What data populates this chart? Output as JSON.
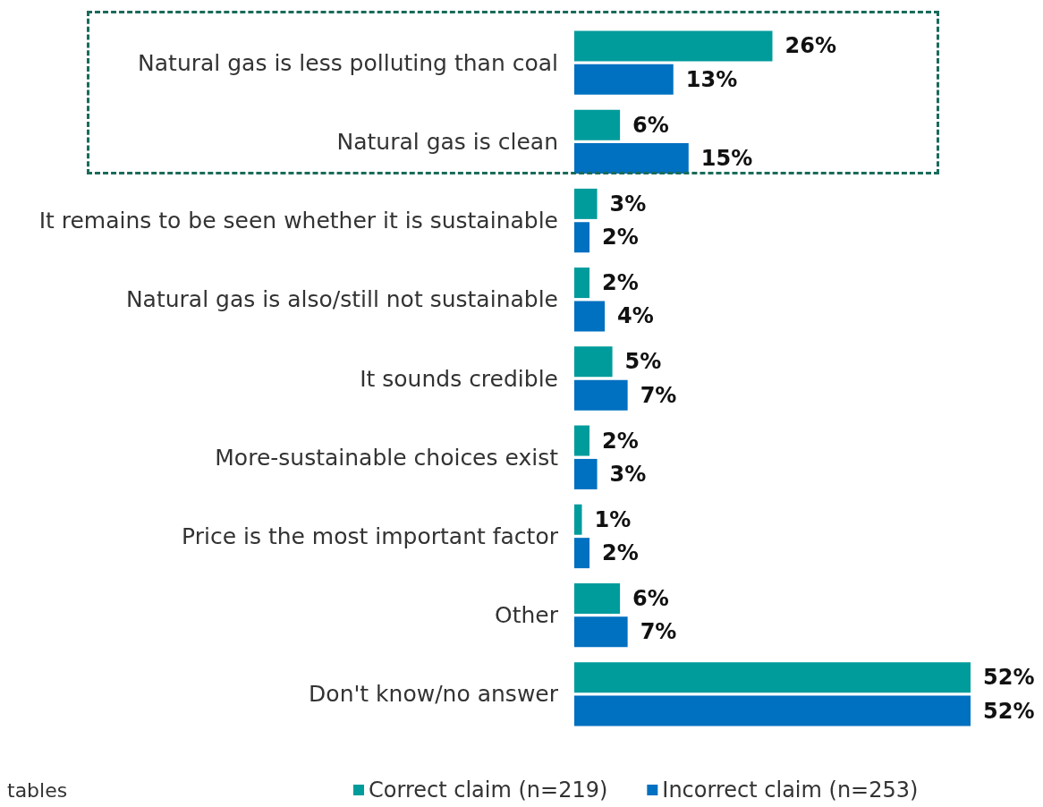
{
  "chart_data": {
    "type": "bar",
    "orientation": "horizontal",
    "categories": [
      "Natural gas is less polluting than coal",
      "Natural gas is clean",
      "It remains to be seen whether it is sustainable",
      "Natural gas is also/still not sustainable",
      "It sounds credible",
      "More-sustainable choices exist",
      "Price is the most important factor",
      "Other",
      "Don't know/no answer"
    ],
    "series": [
      {
        "name": "Correct claim (n=219)",
        "color": "#009b9b",
        "values": [
          26,
          6,
          3,
          2,
          5,
          2,
          1,
          6,
          52
        ],
        "value_labels": [
          "26%",
          "6%",
          "3%",
          "2%",
          "5%",
          "2%",
          "1%",
          "6%",
          "52%"
        ]
      },
      {
        "name": "Incorrect claim (n=253)",
        "color": "#0070c0",
        "values": [
          13,
          15,
          2,
          4,
          7,
          3,
          2,
          7,
          52
        ],
        "value_labels": [
          "13%",
          "15%",
          "2%",
          "4%",
          "7%",
          "3%",
          "2%",
          "7%",
          "52%"
        ]
      }
    ],
    "legend": "bottom",
    "grid": false,
    "annotations": [
      "tables"
    ]
  }
}
